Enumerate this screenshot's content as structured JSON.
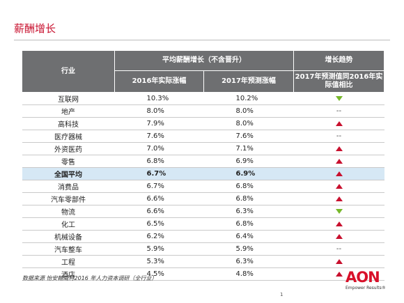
{
  "page": {
    "title": "薪酬增长",
    "source": "数据来源  怡安翰威特2016 年人力资本调研（全行业）",
    "page_number": "1",
    "logo_text": "AON",
    "logo_tagline": "Empower Results®"
  },
  "colors": {
    "accent_red": "#c8102e",
    "header_gray": "#6e6f71",
    "highlight_row": "#d6e8f5",
    "trend_up": "#c8102e",
    "trend_down": "#77b82a"
  },
  "table": {
    "headers": {
      "industry": "行业",
      "avg_increase": "平均薪酬增长（不含晋升）",
      "trend": "增长趋势",
      "col_2016": "2016年实际涨幅",
      "col_2017": "2017年预测涨幅",
      "col_compare": "2017年预测值同2016年实际值相比"
    },
    "rows": [
      {
        "industry": "互联网",
        "actual_2016": "10.3%",
        "forecast_2017": "10.2%",
        "trend": "down",
        "trend_text": ""
      },
      {
        "industry": "地产",
        "actual_2016": "8.0%",
        "forecast_2017": "8.0%",
        "trend": "flat",
        "trend_text": "--"
      },
      {
        "industry": "高科技",
        "actual_2016": "7.9%",
        "forecast_2017": "8.0%",
        "trend": "up",
        "trend_text": ""
      },
      {
        "industry": "医疗器械",
        "actual_2016": "7.6%",
        "forecast_2017": "7.6%",
        "trend": "flat",
        "trend_text": "--"
      },
      {
        "industry": "外资医药",
        "actual_2016": "7.0%",
        "forecast_2017": "7.1%",
        "trend": "up",
        "trend_text": ""
      },
      {
        "industry": "零售",
        "actual_2016": "6.8%",
        "forecast_2017": "6.9%",
        "trend": "up",
        "trend_text": ""
      },
      {
        "industry": "全国平均",
        "actual_2016": "6.7%",
        "forecast_2017": "6.9%",
        "trend": "up",
        "trend_text": "",
        "highlight": true
      },
      {
        "industry": "消费品",
        "actual_2016": "6.7%",
        "forecast_2017": "6.8%",
        "trend": "up",
        "trend_text": ""
      },
      {
        "industry": "汽车零部件",
        "actual_2016": "6.6%",
        "forecast_2017": "6.8%",
        "trend": "up",
        "trend_text": ""
      },
      {
        "industry": "物流",
        "actual_2016": "6.6%",
        "forecast_2017": "6.3%",
        "trend": "down",
        "trend_text": ""
      },
      {
        "industry": "化工",
        "actual_2016": "6.5%",
        "forecast_2017": "6.8%",
        "trend": "up",
        "trend_text": ""
      },
      {
        "industry": "机械设备",
        "actual_2016": "6.2%",
        "forecast_2017": "6.4%",
        "trend": "up",
        "trend_text": ""
      },
      {
        "industry": "汽车整车",
        "actual_2016": "5.9%",
        "forecast_2017": "5.9%",
        "trend": "flat",
        "trend_text": "--"
      },
      {
        "industry": "工程",
        "actual_2016": "5.3%",
        "forecast_2017": "6.3%",
        "trend": "up",
        "trend_text": ""
      },
      {
        "industry": "酒店",
        "actual_2016": "4.5%",
        "forecast_2017": "4.8%",
        "trend": "up",
        "trend_text": ""
      }
    ]
  }
}
